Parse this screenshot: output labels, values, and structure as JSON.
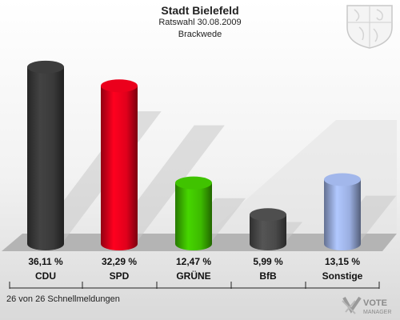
{
  "header": {
    "title": "Stadt Bielefeld",
    "subtitle": "Ratswahl 30.08.2009",
    "district": "Brackwede"
  },
  "footer": {
    "status": "26 von 26 Schnellmeldungen"
  },
  "logo": {
    "text_main": "VOTE",
    "text_sub": "MANAGER"
  },
  "chart_data": {
    "type": "bar",
    "categories": [
      "CDU",
      "SPD",
      "GRÜNE",
      "BfB",
      "Sonstige"
    ],
    "values": [
      36.11,
      32.29,
      12.47,
      5.99,
      13.15
    ],
    "value_labels": [
      "36,11 %",
      "32,29 %",
      "12,47 %",
      "5,99 %",
      "13,15 %"
    ],
    "colors": [
      "#3a3a3a",
      "#e0001b",
      "#3dba00",
      "#4a4a4a",
      "#9aaee0"
    ],
    "ylim": [
      0,
      40
    ],
    "grid": false,
    "legend": "none"
  }
}
